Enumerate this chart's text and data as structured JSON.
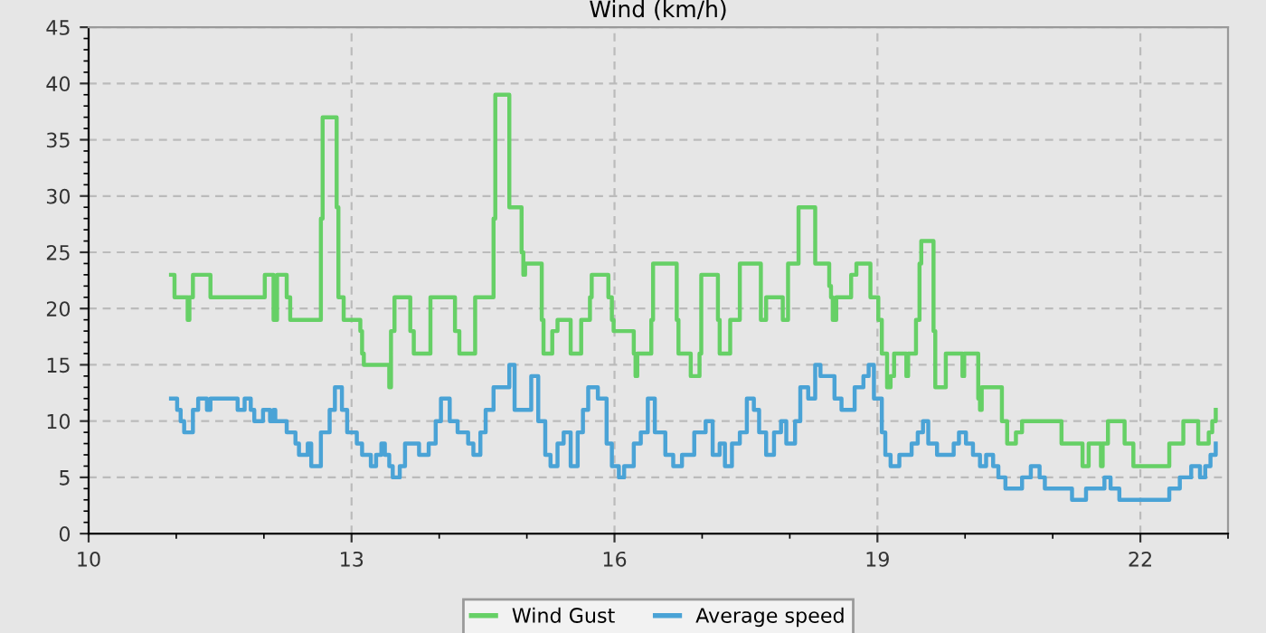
{
  "chart_data": {
    "type": "step",
    "title": "Wind (km/h)",
    "xlim": [
      10,
      23
    ],
    "xticks": [
      10,
      13,
      16,
      19,
      22
    ],
    "ylim": [
      0,
      45
    ],
    "yticks": [
      0,
      5,
      10,
      15,
      20,
      25,
      30,
      35,
      40,
      45
    ],
    "grid": true,
    "legend": "bottom",
    "line_style": "solid",
    "marker": "none",
    "series": [
      {
        "name": "Wind Gust",
        "color": "#66d066",
        "x": [
          10.94,
          10.98,
          11.13,
          11.15,
          11.19,
          11.39,
          12.01,
          12.11,
          12.15,
          12.26,
          12.3,
          12.65,
          12.67,
          12.83,
          12.85,
          12.91,
          13.1,
          13.12,
          13.14,
          13.43,
          13.45,
          13.49,
          13.67,
          13.71,
          13.9,
          14.18,
          14.23,
          14.41,
          14.62,
          14.64,
          14.8,
          14.94,
          14.96,
          14.98,
          15.17,
          15.19,
          15.29,
          15.35,
          15.5,
          15.62,
          15.72,
          15.74,
          15.93,
          15.97,
          15.99,
          16.22,
          16.24,
          16.26,
          16.42,
          16.44,
          16.71,
          16.73,
          16.87,
          16.97,
          16.99,
          17.18,
          17.2,
          17.32,
          17.43,
          17.67,
          17.73,
          17.92,
          17.98,
          18.1,
          18.29,
          18.45,
          18.47,
          18.49,
          18.53,
          18.55,
          18.7,
          18.76,
          18.92,
          19.01,
          19.05,
          19.11,
          19.15,
          19.19,
          19.33,
          19.35,
          19.44,
          19.48,
          19.5,
          19.64,
          19.66,
          19.78,
          19.97,
          19.99,
          20.15,
          20.17,
          20.19,
          20.42,
          20.48,
          20.58,
          20.65,
          21.1,
          21.34,
          21.41,
          21.55,
          21.57,
          21.63,
          21.82,
          21.92,
          22.33,
          22.49,
          22.66,
          22.78,
          22.82,
          22.86
        ],
        "values": [
          23,
          21,
          19,
          21,
          23,
          21,
          23,
          19,
          23,
          21,
          19,
          28,
          37,
          29,
          21,
          19,
          18,
          16,
          15,
          13,
          18,
          21,
          18,
          16,
          21,
          18,
          16,
          21,
          28,
          39,
          29,
          25,
          23,
          24,
          19,
          16,
          18,
          19,
          16,
          19,
          21,
          23,
          21,
          19,
          18,
          16,
          14,
          16,
          19,
          24,
          19,
          16,
          14,
          16,
          23,
          19,
          16,
          19,
          24,
          19,
          21,
          19,
          24,
          29,
          24,
          22,
          21,
          19,
          21,
          21,
          23,
          24,
          21,
          19,
          16,
          13,
          14,
          16,
          14,
          16,
          19,
          24,
          26,
          18,
          13,
          16,
          14,
          16,
          12,
          11,
          13,
          10,
          8,
          9,
          10,
          8,
          6,
          8,
          6,
          8,
          10,
          8,
          6,
          8,
          10,
          8,
          9,
          10,
          11
        ]
      },
      {
        "name": "Average speed",
        "color": "#4aa3d6",
        "x": [
          10.94,
          11.01,
          11.05,
          11.09,
          11.19,
          11.25,
          11.35,
          11.39,
          11.7,
          11.78,
          11.85,
          11.89,
          11.99,
          12.07,
          12.11,
          12.13,
          12.26,
          12.36,
          12.4,
          12.5,
          12.54,
          12.65,
          12.75,
          12.81,
          12.89,
          12.95,
          13.06,
          13.12,
          13.22,
          13.28,
          13.34,
          13.38,
          13.43,
          13.47,
          13.55,
          13.61,
          13.77,
          13.88,
          13.96,
          14.02,
          14.12,
          14.21,
          14.33,
          14.39,
          14.47,
          14.53,
          14.62,
          14.72,
          14.8,
          14.86,
          14.98,
          15.05,
          15.13,
          15.21,
          15.27,
          15.35,
          15.42,
          15.5,
          15.58,
          15.64,
          15.7,
          15.81,
          15.91,
          15.97,
          16.05,
          16.11,
          16.22,
          16.3,
          16.38,
          16.46,
          16.58,
          16.67,
          16.77,
          16.91,
          17.04,
          17.12,
          17.2,
          17.26,
          17.34,
          17.43,
          17.51,
          17.59,
          17.65,
          17.73,
          17.82,
          17.9,
          17.96,
          18.06,
          18.12,
          18.21,
          18.29,
          18.35,
          18.51,
          18.59,
          18.74,
          18.84,
          18.9,
          18.96,
          19.05,
          19.09,
          19.15,
          19.25,
          19.39,
          19.46,
          19.52,
          19.58,
          19.68,
          19.87,
          19.93,
          20.01,
          20.09,
          20.17,
          20.24,
          20.32,
          20.38,
          20.46,
          20.65,
          20.75,
          20.85,
          20.91,
          21.22,
          21.38,
          21.59,
          21.66,
          21.76,
          22.33,
          22.45,
          22.58,
          22.68,
          22.74,
          22.8,
          22.86
        ],
        "values": [
          12,
          11,
          10,
          9,
          11,
          12,
          11,
          12,
          11,
          12,
          11,
          10,
          11,
          10,
          11,
          10,
          9,
          8,
          7,
          8,
          6,
          9,
          11,
          13,
          11,
          9,
          8,
          7,
          6,
          7,
          8,
          7,
          6,
          5,
          6,
          8,
          7,
          8,
          10,
          12,
          10,
          9,
          8,
          7,
          9,
          11,
          13,
          13,
          15,
          11,
          11,
          14,
          10,
          7,
          6,
          8,
          9,
          6,
          9,
          11,
          13,
          12,
          8,
          6,
          5,
          6,
          8,
          9,
          12,
          9,
          7,
          6,
          7,
          9,
          10,
          7,
          8,
          6,
          8,
          9,
          12,
          11,
          9,
          7,
          9,
          10,
          8,
          10,
          13,
          12,
          15,
          14,
          12,
          11,
          13,
          14,
          15,
          12,
          9,
          7,
          6,
          7,
          8,
          9,
          10,
          8,
          7,
          8,
          9,
          8,
          7,
          6,
          7,
          6,
          5,
          4,
          5,
          6,
          5,
          4,
          3,
          4,
          5,
          4,
          3,
          4,
          5,
          6,
          5,
          6,
          7,
          8
        ]
      }
    ]
  }
}
